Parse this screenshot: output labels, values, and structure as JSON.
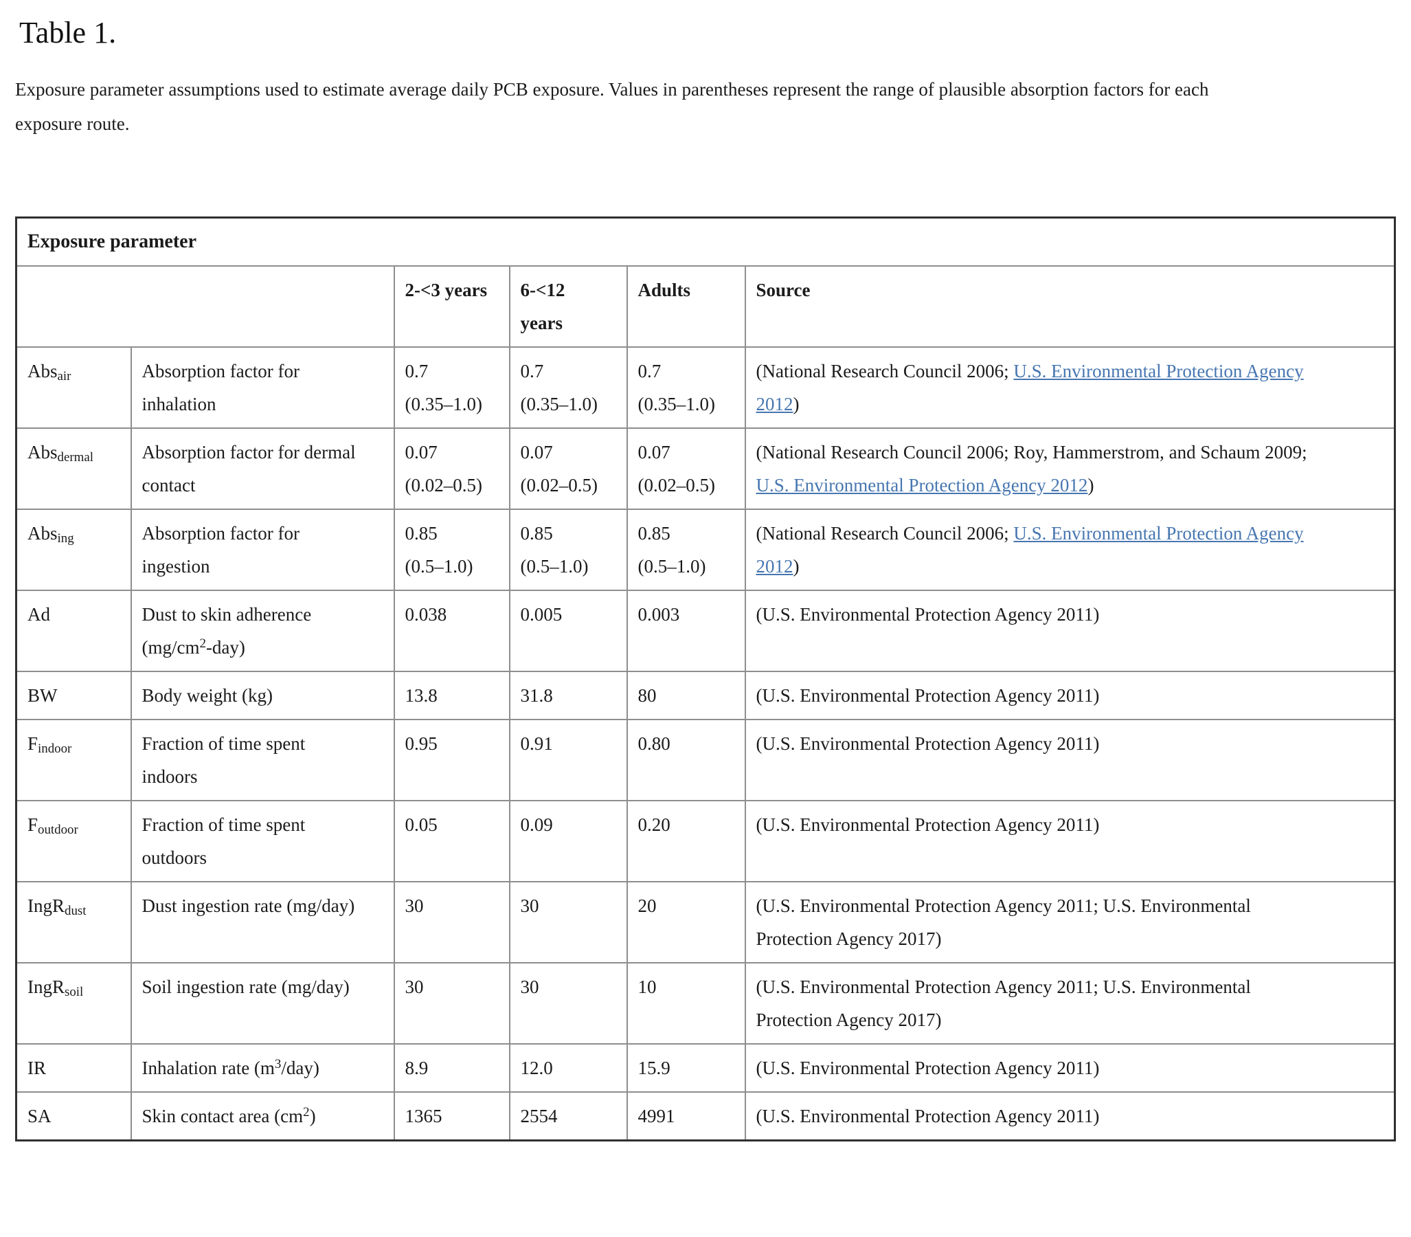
{
  "page": {
    "title": "Table 1.",
    "caption": "Exposure parameter assumptions used to estimate average daily PCB exposure. Values in parentheses represent the range of plausible absorption factors for each exposure route."
  },
  "table": {
    "group_header": "Exposure parameter",
    "column_headers": [
      "2-<3 years",
      "6-<12 years",
      "Adults",
      "Source"
    ],
    "link_color": "#4676b0",
    "rows": [
      {
        "symbol": [
          {
            "text": "Abs"
          },
          {
            "text": "air",
            "script": "sub"
          }
        ],
        "description": [
          {
            "text": "Absorption factor for inhalation"
          }
        ],
        "values": [
          "0.7\n(0.35–1.0)",
          "0.7\n(0.35–1.0)",
          "0.7\n(0.35–1.0)"
        ],
        "source": [
          {
            "text": "(National Research Council 2006; "
          },
          {
            "text": "U.S. Environmental Protection Agency 2012",
            "link": true
          },
          {
            "text": ")"
          }
        ]
      },
      {
        "symbol": [
          {
            "text": "Abs"
          },
          {
            "text": "dermal",
            "script": "sub"
          }
        ],
        "description": [
          {
            "text": "Absorption factor for dermal contact"
          }
        ],
        "values": [
          "0.07\n(0.02–0.5)",
          "0.07\n(0.02–0.5)",
          "0.07\n(0.02–0.5)"
        ],
        "source": [
          {
            "text": "(National Research Council 2006; Roy, Hammerstrom, and Schaum 2009; "
          },
          {
            "text": "U.S. Environmental Protection Agency 2012",
            "link": true
          },
          {
            "text": ")"
          }
        ]
      },
      {
        "symbol": [
          {
            "text": "Abs"
          },
          {
            "text": "ing",
            "script": "sub"
          }
        ],
        "description": [
          {
            "text": "Absorption factor for ingestion"
          }
        ],
        "values": [
          "0.85\n(0.5–1.0)",
          "0.85\n(0.5–1.0)",
          "0.85\n(0.5–1.0)"
        ],
        "source": [
          {
            "text": "(National Research Council 2006; "
          },
          {
            "text": "U.S. Environmental Protection Agency 2012",
            "link": true
          },
          {
            "text": ")"
          }
        ]
      },
      {
        "symbol": [
          {
            "text": "Ad"
          }
        ],
        "description": [
          {
            "text": "Dust to skin adherence (mg/cm"
          },
          {
            "text": "2",
            "script": "sup"
          },
          {
            "text": "-day)"
          }
        ],
        "values": [
          "0.038",
          "0.005",
          "0.003"
        ],
        "source": [
          {
            "text": "(U.S. Environmental Protection Agency 2011)"
          }
        ]
      },
      {
        "symbol": [
          {
            "text": "BW"
          }
        ],
        "description": [
          {
            "text": "Body weight (kg)"
          }
        ],
        "values": [
          "13.8",
          "31.8",
          "80"
        ],
        "source": [
          {
            "text": "(U.S. Environmental Protection Agency 2011)"
          }
        ]
      },
      {
        "symbol": [
          {
            "text": "F"
          },
          {
            "text": "indoor",
            "script": "sub"
          }
        ],
        "description": [
          {
            "text": "Fraction of time spent indoors"
          }
        ],
        "values": [
          "0.95",
          "0.91",
          "0.80"
        ],
        "source": [
          {
            "text": "(U.S. Environmental Protection Agency 2011)"
          }
        ]
      },
      {
        "symbol": [
          {
            "text": "F"
          },
          {
            "text": "outdoor",
            "script": "sub"
          }
        ],
        "description": [
          {
            "text": "Fraction of time spent outdoors"
          }
        ],
        "values": [
          "0.05",
          "0.09",
          "0.20"
        ],
        "source": [
          {
            "text": "(U.S. Environmental Protection Agency 2011)"
          }
        ]
      },
      {
        "symbol": [
          {
            "text": "IngR"
          },
          {
            "text": "dust",
            "script": "sub"
          }
        ],
        "description": [
          {
            "text": "Dust ingestion rate (mg/day)"
          }
        ],
        "values": [
          "30",
          "30",
          "20"
        ],
        "source": [
          {
            "text": "(U.S. Environmental Protection Agency 2011; U.S. Environmental Protection Agency 2017)"
          }
        ]
      },
      {
        "symbol": [
          {
            "text": "IngR"
          },
          {
            "text": "soil",
            "script": "sub"
          }
        ],
        "description": [
          {
            "text": "Soil ingestion rate (mg/day)"
          }
        ],
        "values": [
          "30",
          "30",
          "10"
        ],
        "source": [
          {
            "text": "(U.S. Environmental Protection Agency 2011; U.S. Environmental Protection Agency 2017)"
          }
        ]
      },
      {
        "symbol": [
          {
            "text": "IR"
          }
        ],
        "description": [
          {
            "text": "Inhalation rate (m"
          },
          {
            "text": "3",
            "script": "sup"
          },
          {
            "text": "/day)"
          }
        ],
        "values": [
          "8.9",
          "12.0",
          "15.9"
        ],
        "source": [
          {
            "text": "(U.S. Environmental Protection Agency 2011)"
          }
        ]
      },
      {
        "symbol": [
          {
            "text": "SA"
          }
        ],
        "description": [
          {
            "text": "Skin contact area (cm"
          },
          {
            "text": "2",
            "script": "sup"
          },
          {
            "text": ")"
          }
        ],
        "values": [
          "1365",
          "2554",
          "4991"
        ],
        "source": [
          {
            "text": "(U.S. Environmental Protection Agency 2011)"
          }
        ]
      }
    ]
  }
}
